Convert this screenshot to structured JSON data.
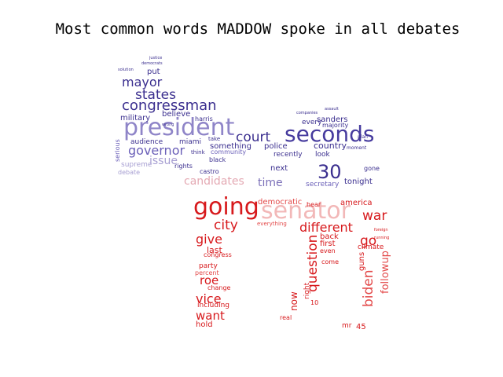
{
  "chart_data": {
    "type": "wordcloud",
    "title": "Most common words MADDOW spoke in all debates",
    "colors": {
      "blue_dark": "#3b2f8f",
      "blue_mid": "#6a5fb8",
      "blue_light": "#a79fd2",
      "pink": "#e4a9b3",
      "red": "#d7191c",
      "red_mid": "#e34a4a"
    },
    "groups": [
      {
        "name": "blue-elephant",
        "words": [
          {
            "text": "president",
            "weight": 30,
            "color": "#8f85c8"
          },
          {
            "text": "seconds",
            "weight": 28,
            "color": "#463b9e"
          },
          {
            "text": "congressman",
            "weight": 18,
            "color": "#3b2f8f"
          },
          {
            "text": "states",
            "weight": 17,
            "color": "#3b2f8f"
          },
          {
            "text": "mayor",
            "weight": 16,
            "color": "#3b2f8f"
          },
          {
            "text": "governor",
            "weight": 16,
            "color": "#6a5fb8"
          },
          {
            "text": "court",
            "weight": 17,
            "color": "#3b2f8f"
          },
          {
            "text": "30",
            "weight": 24,
            "color": "#3b2f8f"
          },
          {
            "text": "time",
            "weight": 14,
            "color": "#7b6fb8"
          },
          {
            "text": "issue",
            "weight": 14,
            "color": "#a79fd2"
          },
          {
            "text": "police",
            "weight": 10,
            "color": "#3b2f8f"
          },
          {
            "text": "country",
            "weight": 11,
            "color": "#3b2f8f"
          },
          {
            "text": "something",
            "weight": 10,
            "color": "#3b2f8f"
          },
          {
            "text": "sanders",
            "weight": 10,
            "color": "#3b2f8f"
          },
          {
            "text": "military",
            "weight": 10,
            "color": "#3b2f8f"
          },
          {
            "text": "believe",
            "weight": 10,
            "color": "#3b2f8f"
          },
          {
            "text": "audience",
            "weight": 9,
            "color": "#3b2f8f"
          },
          {
            "text": "miami",
            "weight": 9,
            "color": "#3b2f8f"
          },
          {
            "text": "put",
            "weight": 10,
            "color": "#3b2f8f"
          },
          {
            "text": "harris",
            "weight": 8,
            "color": "#3b2f8f"
          },
          {
            "text": "next",
            "weight": 10,
            "color": "#3b2f8f"
          },
          {
            "text": "recently",
            "weight": 9,
            "color": "#3b2f8f"
          },
          {
            "text": "every",
            "weight": 9,
            "color": "#3b2f8f"
          },
          {
            "text": "look",
            "weight": 9,
            "color": "#3b2f8f"
          },
          {
            "text": "majority",
            "weight": 8,
            "color": "#3b2f8f"
          },
          {
            "text": "supreme",
            "weight": 9,
            "color": "#a79fd2"
          },
          {
            "text": "debate",
            "weight": 8,
            "color": "#a79fd2"
          },
          {
            "text": "rights",
            "weight": 8,
            "color": "#3b2f8f"
          },
          {
            "text": "castro",
            "weight": 8,
            "color": "#3b2f8f"
          },
          {
            "text": "black",
            "weight": 8,
            "color": "#3b2f8f"
          },
          {
            "text": "community",
            "weight": 8,
            "color": "#6a5fb8"
          },
          {
            "text": "secretary",
            "weight": 9,
            "color": "#6a5fb8"
          },
          {
            "text": "tonight",
            "weight": 10,
            "color": "#3b2f8f"
          },
          {
            "text": "serious",
            "weight": 8,
            "color": "#6a5fb8"
          },
          {
            "text": "gone",
            "weight": 8,
            "color": "#3b2f8f"
          },
          {
            "text": "think",
            "weight": 7,
            "color": "#3b2f8f"
          },
          {
            "text": "take",
            "weight": 7,
            "color": "#3b2f8f"
          },
          {
            "text": "justice",
            "weight": 5,
            "color": "#3b2f8f"
          },
          {
            "text": "democrats",
            "weight": 5,
            "color": "#3b2f8f"
          },
          {
            "text": "solution",
            "weight": 5,
            "color": "#3b2f8f"
          },
          {
            "text": "wrong",
            "weight": 5,
            "color": "#3b2f8f"
          },
          {
            "text": "companies",
            "weight": 5,
            "color": "#3b2f8f"
          },
          {
            "text": "assault",
            "weight": 5,
            "color": "#3b2f8f"
          },
          {
            "text": "moment",
            "weight": 6,
            "color": "#3b2f8f"
          },
          {
            "text": "plan",
            "weight": 6,
            "color": "#3b2f8f"
          },
          {
            "text": "candidates",
            "weight": 14,
            "color": "#e4a9b3"
          }
        ]
      },
      {
        "name": "red-donkey",
        "words": [
          {
            "text": "going",
            "weight": 30,
            "color": "#d7191c"
          },
          {
            "text": "senator",
            "weight": 30,
            "color": "#f2b8b8"
          },
          {
            "text": "war",
            "weight": 17,
            "color": "#d7191c"
          },
          {
            "text": "city",
            "weight": 17,
            "color": "#d7191c"
          },
          {
            "text": "give",
            "weight": 16,
            "color": "#d7191c"
          },
          {
            "text": "different",
            "weight": 16,
            "color": "#d7191c"
          },
          {
            "text": "go",
            "weight": 17,
            "color": "#d7191c"
          },
          {
            "text": "question",
            "weight": 17,
            "color": "#d7191c"
          },
          {
            "text": "biden",
            "weight": 17,
            "color": "#e34a4a"
          },
          {
            "text": "followup",
            "weight": 13,
            "color": "#e34a4a"
          },
          {
            "text": "vice",
            "weight": 16,
            "color": "#d7191c"
          },
          {
            "text": "roe",
            "weight": 15,
            "color": "#d7191c"
          },
          {
            "text": "want",
            "weight": 15,
            "color": "#d7191c"
          },
          {
            "text": "now",
            "weight": 12,
            "color": "#d7191c"
          },
          {
            "text": "america",
            "weight": 10,
            "color": "#d7191c"
          },
          {
            "text": "democratic",
            "weight": 10,
            "color": "#e34a4a"
          },
          {
            "text": "last",
            "weight": 11,
            "color": "#d7191c"
          },
          {
            "text": "first",
            "weight": 10,
            "color": "#d7191c"
          },
          {
            "text": "back",
            "weight": 10,
            "color": "#d7191c"
          },
          {
            "text": "party",
            "weight": 9,
            "color": "#d7191c"
          },
          {
            "text": "guns",
            "weight": 10,
            "color": "#d7191c"
          },
          {
            "text": "climate",
            "weight": 9,
            "color": "#d7191c"
          },
          {
            "text": "congress",
            "weight": 8,
            "color": "#d7191c"
          },
          {
            "text": "hold",
            "weight": 10,
            "color": "#d7191c"
          },
          {
            "text": "including",
            "weight": 9,
            "color": "#d7191c"
          },
          {
            "text": "right",
            "weight": 9,
            "color": "#d7191c"
          },
          {
            "text": "real",
            "weight": 8,
            "color": "#d7191c"
          },
          {
            "text": "change",
            "weight": 8,
            "color": "#d7191c"
          },
          {
            "text": "percent",
            "weight": 8,
            "color": "#e34a4a"
          },
          {
            "text": "come",
            "weight": 8,
            "color": "#d7191c"
          },
          {
            "text": "even",
            "weight": 8,
            "color": "#d7191c"
          },
          {
            "text": "mr",
            "weight": 9,
            "color": "#d7191c"
          },
          {
            "text": "45",
            "weight": 10,
            "color": "#d7191c"
          },
          {
            "text": "10",
            "weight": 8,
            "color": "#d7191c"
          },
          {
            "text": "hear",
            "weight": 8,
            "color": "#d7191c"
          },
          {
            "text": "everything",
            "weight": 7,
            "color": "#e34a4a"
          },
          {
            "text": "running",
            "weight": 5,
            "color": "#d7191c"
          },
          {
            "text": "foreign",
            "weight": 5,
            "color": "#d7191c"
          }
        ]
      }
    ]
  }
}
